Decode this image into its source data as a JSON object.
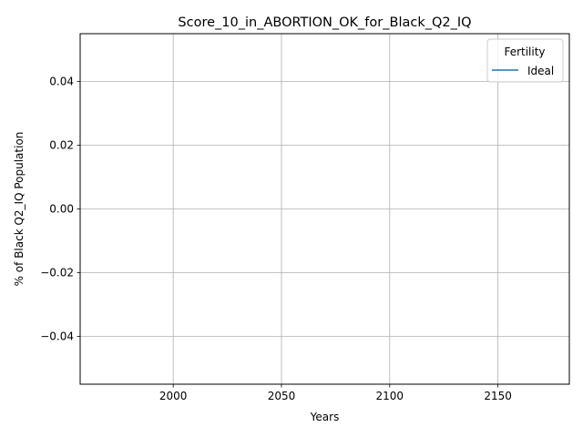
{
  "chart_data": {
    "type": "line",
    "title": "Score_10_in_ABORTION_OK_for_Black_Q2_IQ",
    "xlabel": "Years",
    "ylabel": "% of Black Q2_IQ Population",
    "xlim": [
      1957,
      2183
    ],
    "ylim": [
      -0.055,
      0.055
    ],
    "x_ticks": [
      2000,
      2050,
      2100,
      2150
    ],
    "y_ticks": [
      -0.04,
      -0.02,
      0.0,
      0.02,
      0.04
    ],
    "x_tick_labels": [
      "2000",
      "2050",
      "2100",
      "2150"
    ],
    "y_tick_labels": [
      "−0.04",
      "−0.02",
      "0.00",
      "0.02",
      "0.04"
    ],
    "grid": true,
    "legend": {
      "title": "Fertility",
      "placement": "top-right",
      "entries": [
        "Ideal"
      ]
    },
    "series": [
      {
        "name": "Ideal",
        "color": "#1f77b4",
        "x": [],
        "y": []
      }
    ]
  }
}
